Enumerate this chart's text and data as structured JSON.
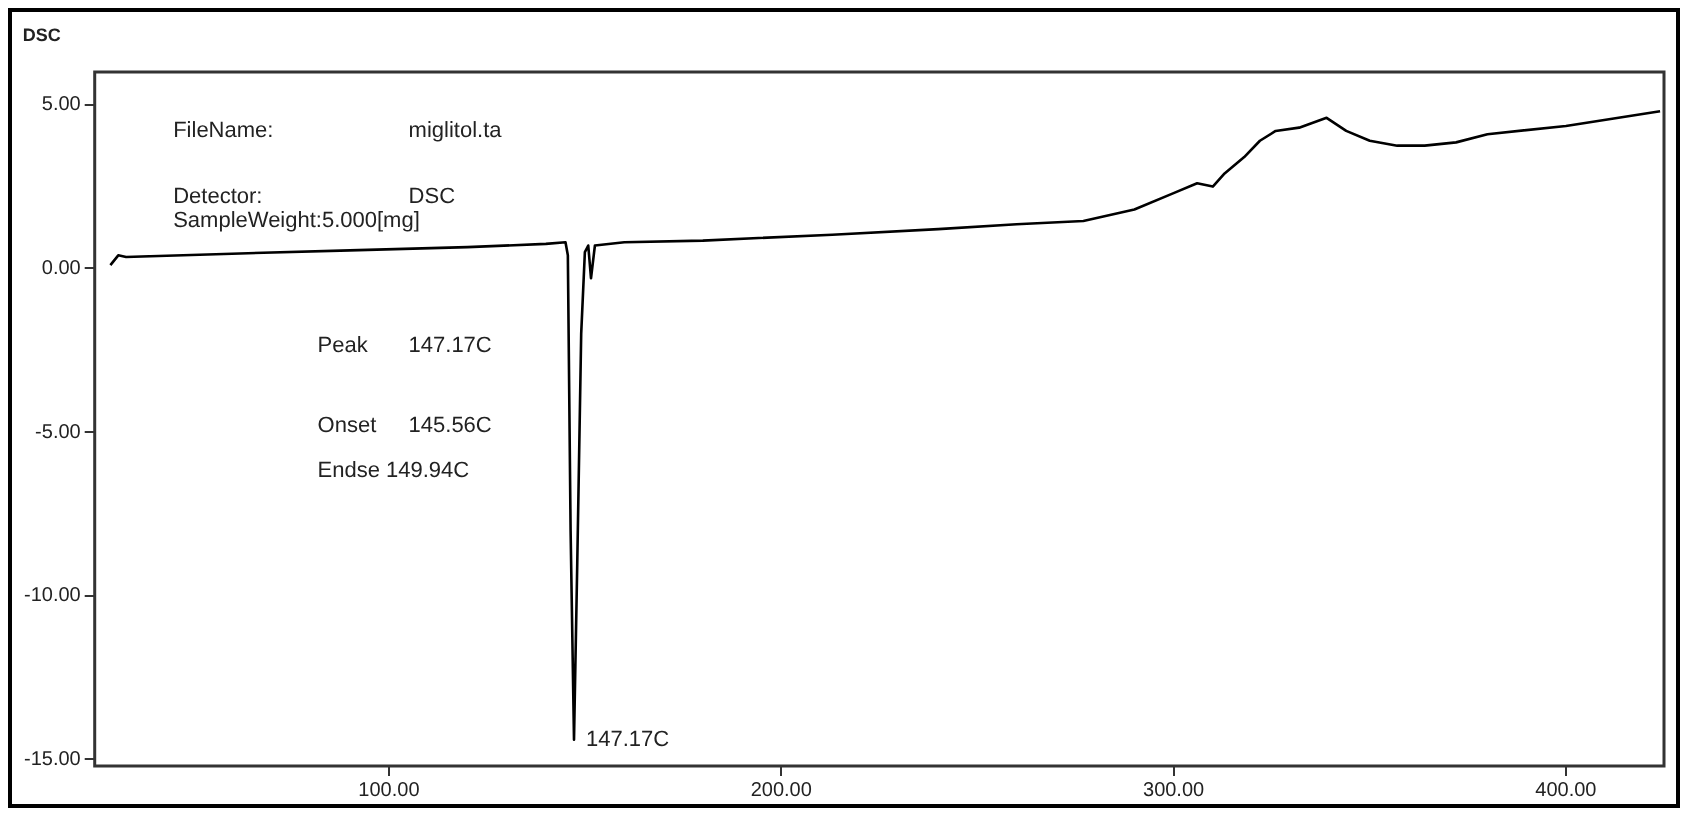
{
  "chart_data": {
    "type": "line",
    "ylabel": "DSC",
    "x": [
      29,
      31,
      33,
      60,
      90,
      120,
      140,
      145,
      145.6,
      146.3,
      147.17,
      148,
      149,
      149.94,
      150.8,
      151.5,
      152.5,
      160,
      180,
      213,
      240,
      260,
      277,
      290,
      300,
      306,
      310,
      313,
      318,
      322,
      326,
      332,
      339,
      344,
      350,
      357,
      364,
      372,
      380,
      400,
      424
    ],
    "series": [
      {
        "color": "#000000",
        "values": [
          0.1,
          0.4,
          0.35,
          0.45,
          0.55,
          0.65,
          0.75,
          0.8,
          0.4,
          -8,
          -14.4,
          -9,
          -2,
          0.5,
          0.7,
          -0.3,
          0.7,
          0.8,
          0.85,
          1.03,
          1.2,
          1.35,
          1.45,
          1.8,
          2.3,
          2.6,
          2.5,
          2.9,
          3.4,
          3.9,
          4.2,
          4.3,
          4.6,
          4.2,
          3.9,
          3.75,
          3.75,
          3.85,
          4.1,
          4.35,
          4.8
        ]
      }
    ],
    "xlim": [
      25,
      425
    ],
    "ylim": [
      -15.2,
      6
    ],
    "xticks": [
      {
        "value": 100,
        "label": "100.00"
      },
      {
        "value": 200,
        "label": "200.00"
      },
      {
        "value": 300,
        "label": "300.00"
      },
      {
        "value": 400,
        "label": "400.00"
      }
    ],
    "yticks": [
      {
        "value": 5,
        "label": "5.00"
      },
      {
        "value": 0,
        "label": "0.00"
      },
      {
        "value": -5,
        "label": "-5.00"
      },
      {
        "value": -10,
        "label": "-10.00"
      },
      {
        "value": -15,
        "label": "-15.00"
      }
    ],
    "grid": false,
    "legend": false,
    "marker": "none",
    "line_style": "solid",
    "annotations": [
      "FileName:",
      "miglitol.ta",
      "Detector:",
      "DSC",
      "SampleWeight:5.000[mg]",
      "Peak",
      "147.17C",
      "Onset",
      "145.56C",
      "Endse 149.94C",
      {
        "text": "147.17C",
        "x": 147.17,
        "y": -14.4
      }
    ]
  }
}
